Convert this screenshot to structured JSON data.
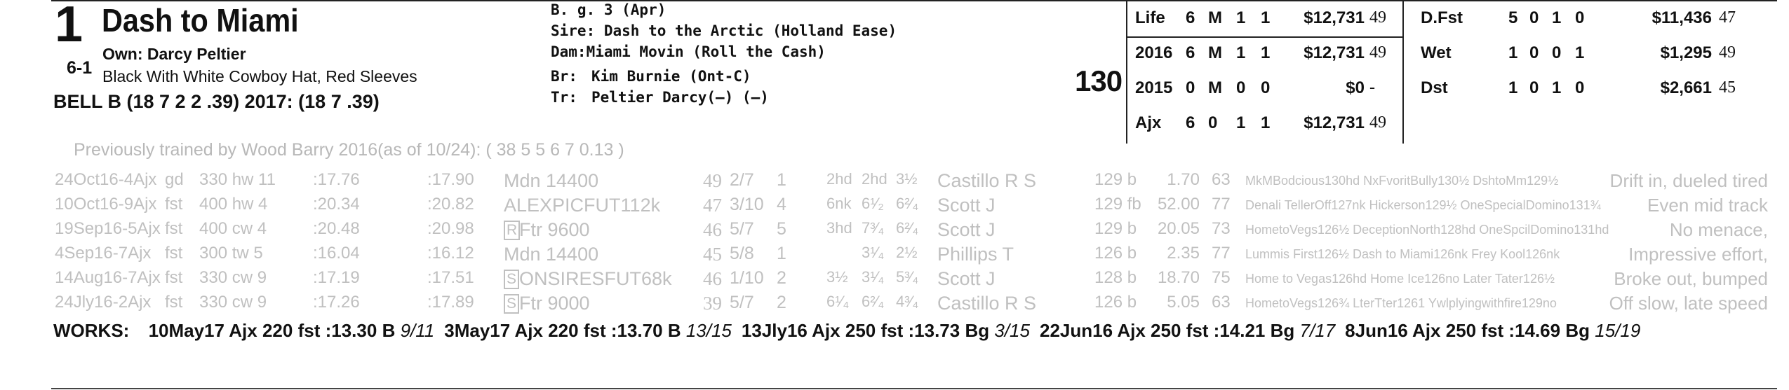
{
  "entry": {
    "post_position": "1",
    "horse_name": "Dash to Miami",
    "morning_line": "6-1",
    "owner": "Own: Darcy Peltier",
    "silks": "Black With White Cowboy Hat, Red Sleeves",
    "jockey": "BELL B (18 7 2 2 .39) 2017: (18 7 .39)",
    "weight": "130"
  },
  "breeding": [
    {
      "label": "B. g. 3 (Apr)",
      "value": ""
    },
    {
      "label": "Sire:",
      "value": "Dash to the Arctic (Holland Ease)"
    },
    {
      "label": "Dam:",
      "value": "Miami Movin (Roll the Cash)"
    },
    {
      "label": "Br:",
      "value": "Kim Burnie (Ont-C)"
    },
    {
      "label": "Tr:",
      "value": "Peltier Darcy(—) (—)"
    }
  ],
  "record": [
    {
      "label": "Life",
      "starts": "6",
      "w": "M",
      "p": "1",
      "s": "1",
      "earn": "$12,731",
      "fig": "49"
    },
    {
      "label": "2016",
      "starts": "6",
      "w": "M",
      "p": "1",
      "s": "1",
      "earn": "$12,731",
      "fig": "49"
    },
    {
      "label": "2015",
      "starts": "0",
      "w": "M",
      "p": "0",
      "s": "0",
      "earn": "$0",
      "fig": "-"
    },
    {
      "label": "Ajx",
      "starts": "6",
      "w": "0",
      "p": "1",
      "s": "1",
      "earn": "$12,731",
      "fig": "49"
    }
  ],
  "surface_record": [
    {
      "label": "D.Fst",
      "starts": "5",
      "w": "0",
      "p": "1",
      "s": "0",
      "earn": "$11,436",
      "fig": "47"
    },
    {
      "label": "Wet",
      "starts": "1",
      "w": "0",
      "p": "0",
      "s": "1",
      "earn": "$1,295",
      "fig": "49"
    },
    {
      "label": "Dst",
      "starts": "1",
      "w": "0",
      "p": "1",
      "s": "0",
      "earn": "$2,661",
      "fig": "45"
    }
  ],
  "previous_trainer": "Previously trained by Wood Barry 2016(as of 10/24): ( 38 5 5 6 7 0.13 )",
  "past_performances": [
    {
      "date": "24Oct16-4Ajx",
      "cond": "gd",
      "dist": "330 hw 11",
      "f1": ":17.76",
      "f2": ":17.90",
      "race": "Mdn 14400",
      "boxed": "",
      "fig": "49",
      "pp": "2/7",
      "st": "1",
      "c1": "2hd",
      "c2": "2hd",
      "fin": "3½",
      "jockey": "Castillo R S",
      "wt": "129 b",
      "odds": "1.70",
      "spd": "63",
      "top3_a": "MkMBodcious130hd NxFvoritBully130½ DshtoMm129½",
      "top3_b": "",
      "comment": "Drift in, dueled tired"
    },
    {
      "date": "10Oct16-9Ajx",
      "cond": "fst",
      "dist": "400 hw 4",
      "f1": ":20.34",
      "f2": ":20.82",
      "race": "ALEXPICFUT112k",
      "boxed": "",
      "fig": "47",
      "pp": "3/10",
      "st": "4",
      "c1": "6nk",
      "c2": "6¹⁄₂",
      "fin": "6²⁄₄",
      "jockey": "Scott J",
      "wt": "129 fb",
      "odds": "52.00",
      "spd": "77",
      "top3_a": "Denali TellerOff127nk Hickerson129½ OneSpecialDomino131¾",
      "top3_b": "",
      "comment": "Even mid track"
    },
    {
      "date": "19Sep16-5Ajx",
      "cond": "fst",
      "dist": "400 cw 4",
      "f1": ":20.48",
      "f2": ":20.98",
      "race": "Ftr 9600",
      "boxed": "R",
      "fig": "46",
      "pp": "5/7",
      "st": "5",
      "c1": "3hd",
      "c2": "7³⁄₄",
      "fin": "6²⁄₄",
      "jockey": "Scott J",
      "wt": "129 b",
      "odds": "20.05",
      "spd": "73",
      "top3_a": "HometoVegs126½ DeceptionNorth128hd OneSpcilDomino131hd",
      "top3_b": "",
      "comment": "No menace,"
    },
    {
      "date": "4Sep16-7Ajx",
      "cond": "fst",
      "dist": "300 tw 5",
      "f1": ":16.04",
      "f2": ":16.12",
      "race": "Mdn 14400",
      "boxed": "",
      "fig": "45",
      "pp": "5/8",
      "st": "1",
      "c1": "",
      "c2": "3¹⁄₄",
      "fin": "2½",
      "jockey": "Phillips T",
      "wt": "126 b",
      "odds": "2.35",
      "spd": "77",
      "top3_a": "Lummis First126½ Dash to Miami126nk Frey Kool126nk",
      "top3_b": "",
      "comment": "Impressive effort,"
    },
    {
      "date": "14Aug16-7Ajx",
      "cond": "fst",
      "dist": "330 cw 9",
      "f1": ":17.19",
      "f2": ":17.51",
      "race": "ONSIRESFUT68k",
      "boxed": "S",
      "fig": "46",
      "pp": "1/10",
      "st": "2",
      "c1": "3½",
      "c2": "3¹⁄₄",
      "fin": "5³⁄₄",
      "jockey": "Scott J",
      "wt": "128 b",
      "odds": "18.70",
      "spd": "75",
      "top3_a": "Home to Vegas126hd Home Ice126no Later Tater126½",
      "top3_b": "",
      "comment": "Broke out, bumped"
    },
    {
      "date": "24Jly16-2Ajx",
      "cond": "fst",
      "dist": "330 cw 9",
      "f1": ":17.26",
      "f2": ":17.89",
      "race": "Ftr 9000",
      "boxed": "S",
      "fig": "39",
      "pp": "5/7",
      "st": "2",
      "c1": "6¹⁄₄",
      "c2": "6²⁄₄",
      "fin": "4³⁄₄",
      "jockey": "Castillo R S",
      "wt": "126 b",
      "odds": "5.05",
      "spd": "63",
      "top3_a": "HometoVegs126¾ LterTter1261 Ywlplyingwithfire129no",
      "top3_b": "",
      "comment": "Off slow, late speed"
    }
  ],
  "works": {
    "label": "WORKS:",
    "items": [
      {
        "date": "10May17",
        "track": "Ajx",
        "dist": "220",
        "cond": "fst",
        "time": ":13.30",
        "grade": "B",
        "rank": "9/11"
      },
      {
        "date": "3May17",
        "track": "Ajx",
        "dist": "220",
        "cond": "fst",
        "time": ":13.70",
        "grade": "B",
        "rank": "13/15"
      },
      {
        "date": "13Jly16",
        "track": "Ajx",
        "dist": "250",
        "cond": "fst",
        "time": ":13.73",
        "grade": "Bg",
        "rank": "3/15"
      },
      {
        "date": "22Jun16",
        "track": "Ajx",
        "dist": "250",
        "cond": "fst",
        "time": ":14.21",
        "grade": "Bg",
        "rank": "7/17"
      },
      {
        "date": "8Jun16",
        "track": "Ajx",
        "dist": "250",
        "cond": "fst",
        "time": ":14.69",
        "grade": "Bg",
        "rank": "15/19"
      }
    ]
  }
}
